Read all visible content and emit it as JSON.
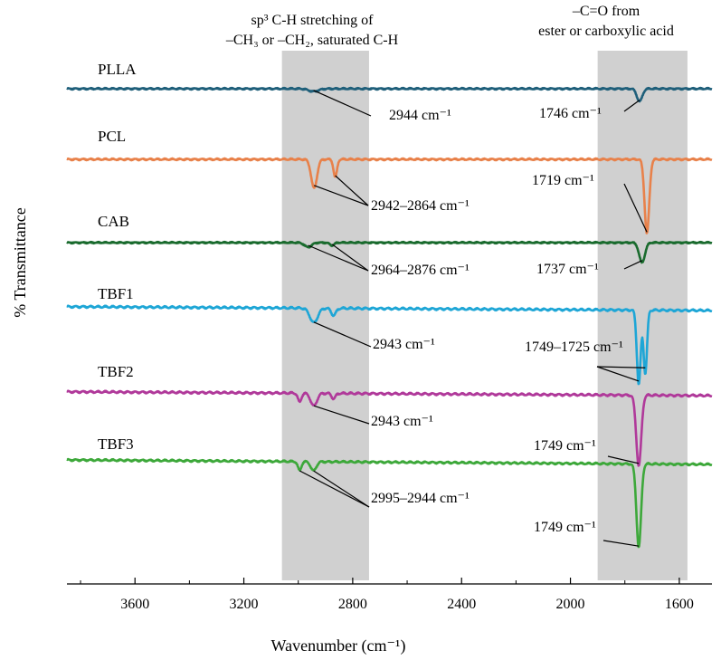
{
  "chart_data": {
    "type": "line",
    "xlabel": "Wavenumber (cm⁻¹)",
    "ylabel": "% Transmittance",
    "xlim": [
      3850,
      1480
    ],
    "x_ticks": [
      3600,
      3200,
      2800,
      2400,
      2000,
      1600
    ],
    "highlight_regions": [
      {
        "x_range": [
          3060,
          2740
        ],
        "title_lines": [
          "sp³ C-H stretching of",
          "–CH₃ or –CH₂, saturated C-H"
        ]
      },
      {
        "x_range": [
          1900,
          1570
        ],
        "title_lines": [
          "–C=O from",
          "ester or carboxylic acid"
        ]
      }
    ],
    "series": [
      {
        "name": "PLLA",
        "color": "#1f5f7a",
        "baseline": 0,
        "peaks": [
          {
            "x": 2944,
            "depth": 3,
            "w": 25
          },
          {
            "x": 1746,
            "depth": 14,
            "w": 14
          }
        ],
        "annotations": [
          {
            "text": "2944 cm⁻¹"
          },
          {
            "text": "1746 cm⁻¹"
          }
        ]
      },
      {
        "name": "PCL",
        "color": "#e8814a",
        "baseline": 0,
        "peaks": [
          {
            "x": 2942,
            "depth": 32,
            "w": 15
          },
          {
            "x": 2864,
            "depth": 20,
            "w": 9
          },
          {
            "x": 1719,
            "depth": 82,
            "w": 12
          }
        ],
        "annotations": [
          {
            "text": "2942–2864 cm⁻¹"
          },
          {
            "text": "1719 cm⁻¹"
          }
        ]
      },
      {
        "name": "CAB",
        "color": "#1a6b2e",
        "baseline": 0,
        "peaks": [
          {
            "x": 2964,
            "depth": 5,
            "w": 18
          },
          {
            "x": 2876,
            "depth": 3,
            "w": 12
          },
          {
            "x": 1737,
            "depth": 22,
            "w": 15
          }
        ],
        "annotations": [
          {
            "text": "2964–2876 cm⁻¹"
          },
          {
            "text": "1737 cm⁻¹"
          }
        ]
      },
      {
        "name": "TBF1",
        "color": "#1ea6d6",
        "baseline": 0,
        "peaks": [
          {
            "x": 2943,
            "depth": 16,
            "w": 20
          },
          {
            "x": 2870,
            "depth": 8,
            "w": 12
          },
          {
            "x": 1749,
            "depth": 82,
            "w": 10
          },
          {
            "x": 1725,
            "depth": 70,
            "w": 9
          }
        ],
        "annotations": [
          {
            "text": "2943 cm⁻¹"
          },
          {
            "text": "1749–1725 cm⁻¹"
          }
        ]
      },
      {
        "name": "TBF2",
        "color": "#b0399a",
        "baseline": 0,
        "peaks": [
          {
            "x": 2995,
            "depth": 10,
            "w": 9
          },
          {
            "x": 2943,
            "depth": 14,
            "w": 16
          },
          {
            "x": 2870,
            "depth": 6,
            "w": 10
          },
          {
            "x": 1749,
            "depth": 78,
            "w": 13
          }
        ],
        "annotations": [
          {
            "text": "2943 cm⁻¹"
          },
          {
            "text": "1749 cm⁻¹"
          }
        ]
      },
      {
        "name": "TBF3",
        "color": "#3da83a",
        "baseline": 0,
        "peaks": [
          {
            "x": 2995,
            "depth": 10,
            "w": 9
          },
          {
            "x": 2944,
            "depth": 10,
            "w": 14
          },
          {
            "x": 1749,
            "depth": 92,
            "w": 12
          }
        ],
        "annotations": [
          {
            "text": "2995–2944 cm⁻¹"
          },
          {
            "text": "1749 cm⁻¹"
          }
        ]
      }
    ]
  }
}
